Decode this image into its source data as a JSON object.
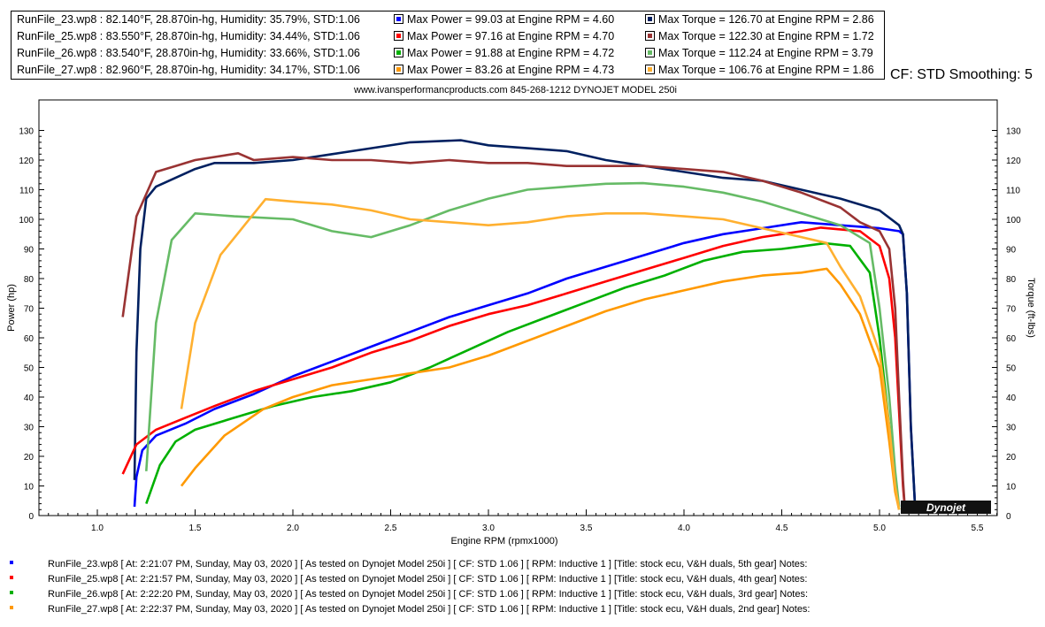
{
  "legend": [
    {
      "file": "RunFile_23.wp8 : 82.140°F, 28.870in-hg, Humidity: 35.79%, STD:1.06",
      "power": "Max Power = 99.03 at Engine RPM = 4.60",
      "torque": "Max Torque = 126.70 at Engine RPM = 2.86",
      "power_color": "#0000ff",
      "torque_color": "#002060"
    },
    {
      "file": "RunFile_25.wp8 : 83.550°F, 28.870in-hg, Humidity: 34.44%, STD:1.06",
      "power": "Max Power = 97.16 at Engine RPM = 4.70",
      "torque": "Max Torque = 122.30 at Engine RPM = 1.72",
      "power_color": "#ff0000",
      "torque_color": "#993333"
    },
    {
      "file": "RunFile_26.wp8 : 83.540°F, 28.870in-hg, Humidity: 33.66%, STD:1.06",
      "power": "Max Power = 91.88 at Engine RPM = 4.72",
      "torque": "Max Torque = 112.24 at Engine RPM = 3.79",
      "power_color": "#00b000",
      "torque_color": "#66bb66"
    },
    {
      "file": "RunFile_27.wp8 : 82.960°F, 28.870in-hg, Humidity: 34.17%, STD:1.06",
      "power": "Max Power = 83.26 at Engine RPM = 4.73",
      "torque": "Max Torque = 106.76 at Engine RPM = 1.86",
      "power_color": "#ff9900",
      "torque_color": "#ffb030"
    }
  ],
  "cf_note": "CF: STD Smoothing: 5",
  "subtitle": "www.ivansperformancproducts.com  845-268-1212   DYNOJET MODEL 250i",
  "logo_text": "Dynojet",
  "run_notes": [
    "RunFile_23.wp8 [ At: 2:21:07 PM, Sunday, May 03, 2020 ] [ As tested on Dynojet Model 250i ] [ CF: STD 1.06 ] [ RPM: Inductive 1 ] [Title: stock ecu, V&H duals, 5th gear]  Notes:",
    "RunFile_25.wp8 [ At: 2:21:57 PM, Sunday, May 03, 2020 ] [ As tested on Dynojet Model 250i ] [ CF: STD 1.06 ] [ RPM: Inductive 1 ] [Title: stock ecu, V&H duals, 4th gear]  Notes:",
    "RunFile_26.wp8 [ At: 2:22:20 PM, Sunday, May 03, 2020 ] [ As tested on Dynojet Model 250i ] [ CF: STD 1.06 ] [ RPM: Inductive 1 ] [Title: stock ecu, V&H duals, 3rd gear]  Notes:",
    "RunFile_27.wp8 [ At: 2:22:37 PM, Sunday, May 03, 2020 ] [ As tested on Dynojet Model 250i ] [ CF: STD 1.06 ] [ RPM: Inductive 1 ] [Title: stock ecu, V&H duals, 2nd gear]  Notes:"
  ],
  "chart_data": {
    "type": "line",
    "title": "",
    "xlabel": "Engine RPM (rpmx1000)",
    "ylabel": "Power (hp)",
    "y2label": "Torque (ft-lbs)",
    "xlim": [
      0.7,
      5.6
    ],
    "ylim": [
      0,
      140
    ],
    "x_ticks": [
      "1.0",
      "1.5",
      "2.0",
      "2.5",
      "3.0",
      "3.5",
      "4.0",
      "4.5",
      "5.0",
      "5.5"
    ],
    "y_ticks": [
      "0",
      "10",
      "20",
      "30",
      "40",
      "50",
      "60",
      "70",
      "80",
      "90",
      "100",
      "110",
      "120",
      "130"
    ],
    "grid": false,
    "series": [
      {
        "metric": "power",
        "color": "#0000ff",
        "x": [
          1.19,
          1.2,
          1.23,
          1.3,
          1.45,
          1.6,
          1.8,
          2.0,
          2.2,
          2.4,
          2.6,
          2.8,
          3.0,
          3.2,
          3.4,
          3.6,
          3.8,
          4.0,
          4.2,
          4.4,
          4.6,
          4.8,
          5.0,
          5.1,
          5.12,
          5.14,
          5.16,
          5.18,
          5.19
        ],
        "y": [
          3,
          13,
          22,
          27,
          31,
          36,
          41,
          47,
          52,
          57,
          62,
          67,
          71,
          75,
          80,
          84,
          88,
          92,
          95,
          97,
          99,
          98,
          97,
          96,
          95,
          75,
          30,
          5,
          2
        ]
      },
      {
        "metric": "torque",
        "color": "#002060",
        "x": [
          1.19,
          1.2,
          1.22,
          1.25,
          1.3,
          1.4,
          1.5,
          1.6,
          1.8,
          2.0,
          2.2,
          2.4,
          2.6,
          2.86,
          3.0,
          3.2,
          3.4,
          3.6,
          3.8,
          4.0,
          4.2,
          4.4,
          4.6,
          4.8,
          5.0,
          5.1,
          5.12,
          5.14,
          5.16,
          5.18,
          5.19
        ],
        "y": [
          12,
          55,
          90,
          107,
          111,
          114,
          117,
          119,
          119,
          120,
          122,
          124,
          126,
          126.7,
          125,
          124,
          123,
          120,
          118,
          116,
          114,
          113,
          110,
          107,
          103,
          98,
          95,
          75,
          30,
          5,
          2
        ]
      },
      {
        "metric": "power",
        "color": "#ff0000",
        "x": [
          1.13,
          1.2,
          1.3,
          1.45,
          1.6,
          1.8,
          2.0,
          2.2,
          2.4,
          2.6,
          2.8,
          3.0,
          3.2,
          3.4,
          3.6,
          3.8,
          4.0,
          4.2,
          4.4,
          4.6,
          4.7,
          4.9,
          5.0,
          5.05,
          5.08,
          5.1,
          5.12,
          5.13
        ],
        "y": [
          14,
          24,
          29,
          33,
          37,
          42,
          46,
          50,
          55,
          59,
          64,
          68,
          71,
          75,
          79,
          83,
          87,
          91,
          94,
          96,
          97.2,
          96,
          91,
          80,
          60,
          35,
          10,
          2
        ]
      },
      {
        "metric": "torque",
        "color": "#993333",
        "x": [
          1.13,
          1.2,
          1.3,
          1.4,
          1.5,
          1.72,
          1.8,
          2.0,
          2.2,
          2.4,
          2.6,
          2.8,
          3.0,
          3.2,
          3.4,
          3.6,
          3.8,
          4.0,
          4.2,
          4.4,
          4.6,
          4.8,
          4.9,
          5.0,
          5.05,
          5.08,
          5.1,
          5.12,
          5.13
        ],
        "y": [
          67,
          101,
          116,
          118,
          120,
          122.3,
          120,
          121,
          120,
          120,
          119,
          120,
          119,
          119,
          118,
          118,
          118,
          117,
          116,
          113,
          109,
          104,
          99,
          96,
          90,
          70,
          40,
          12,
          2
        ]
      },
      {
        "metric": "power",
        "color": "#00b000",
        "x": [
          1.25,
          1.32,
          1.4,
          1.5,
          1.7,
          1.9,
          2.1,
          2.3,
          2.5,
          2.7,
          2.9,
          3.1,
          3.3,
          3.5,
          3.7,
          3.9,
          4.1,
          4.3,
          4.5,
          4.72,
          4.85,
          4.95,
          5.0,
          5.05,
          5.08,
          5.1
        ],
        "y": [
          4,
          17,
          25,
          29,
          33,
          37,
          40,
          42,
          45,
          50,
          56,
          62,
          67,
          72,
          77,
          81,
          86,
          89,
          90,
          91.9,
          91,
          82,
          60,
          30,
          10,
          2
        ]
      },
      {
        "metric": "torque",
        "color": "#66bb66",
        "x": [
          1.25,
          1.3,
          1.38,
          1.5,
          1.7,
          2.0,
          2.2,
          2.4,
          2.6,
          2.8,
          3.0,
          3.2,
          3.4,
          3.6,
          3.79,
          4.0,
          4.2,
          4.4,
          4.6,
          4.8,
          4.95,
          5.0,
          5.05,
          5.08,
          5.1
        ],
        "y": [
          15,
          65,
          93,
          102,
          101,
          100,
          96,
          94,
          98,
          103,
          107,
          110,
          111,
          112,
          112.2,
          111,
          109,
          106,
          102,
          98,
          92,
          70,
          40,
          15,
          3
        ]
      },
      {
        "metric": "power",
        "color": "#ff9900",
        "x": [
          1.43,
          1.5,
          1.65,
          1.85,
          2.0,
          2.2,
          2.4,
          2.6,
          2.8,
          3.0,
          3.2,
          3.4,
          3.6,
          3.8,
          4.0,
          4.2,
          4.4,
          4.6,
          4.73,
          4.8,
          4.9,
          5.0,
          5.05,
          5.08,
          5.1
        ],
        "y": [
          10,
          16,
          27,
          36,
          40,
          44,
          46,
          48,
          50,
          54,
          59,
          64,
          69,
          73,
          76,
          79,
          81,
          82,
          83.3,
          78,
          68,
          50,
          25,
          8,
          2
        ]
      },
      {
        "metric": "torque",
        "color": "#ffb030",
        "x": [
          1.43,
          1.5,
          1.63,
          1.86,
          2.0,
          2.2,
          2.4,
          2.6,
          2.8,
          3.0,
          3.2,
          3.4,
          3.6,
          3.8,
          4.0,
          4.2,
          4.4,
          4.6,
          4.73,
          4.8,
          4.9,
          5.0,
          5.05,
          5.08,
          5.1
        ],
        "y": [
          36,
          65,
          88,
          106.8,
          106,
          105,
          103,
          100,
          99,
          98,
          99,
          101,
          102,
          102,
          101,
          100,
          97,
          94,
          92,
          84,
          74,
          55,
          30,
          10,
          2
        ]
      }
    ]
  }
}
